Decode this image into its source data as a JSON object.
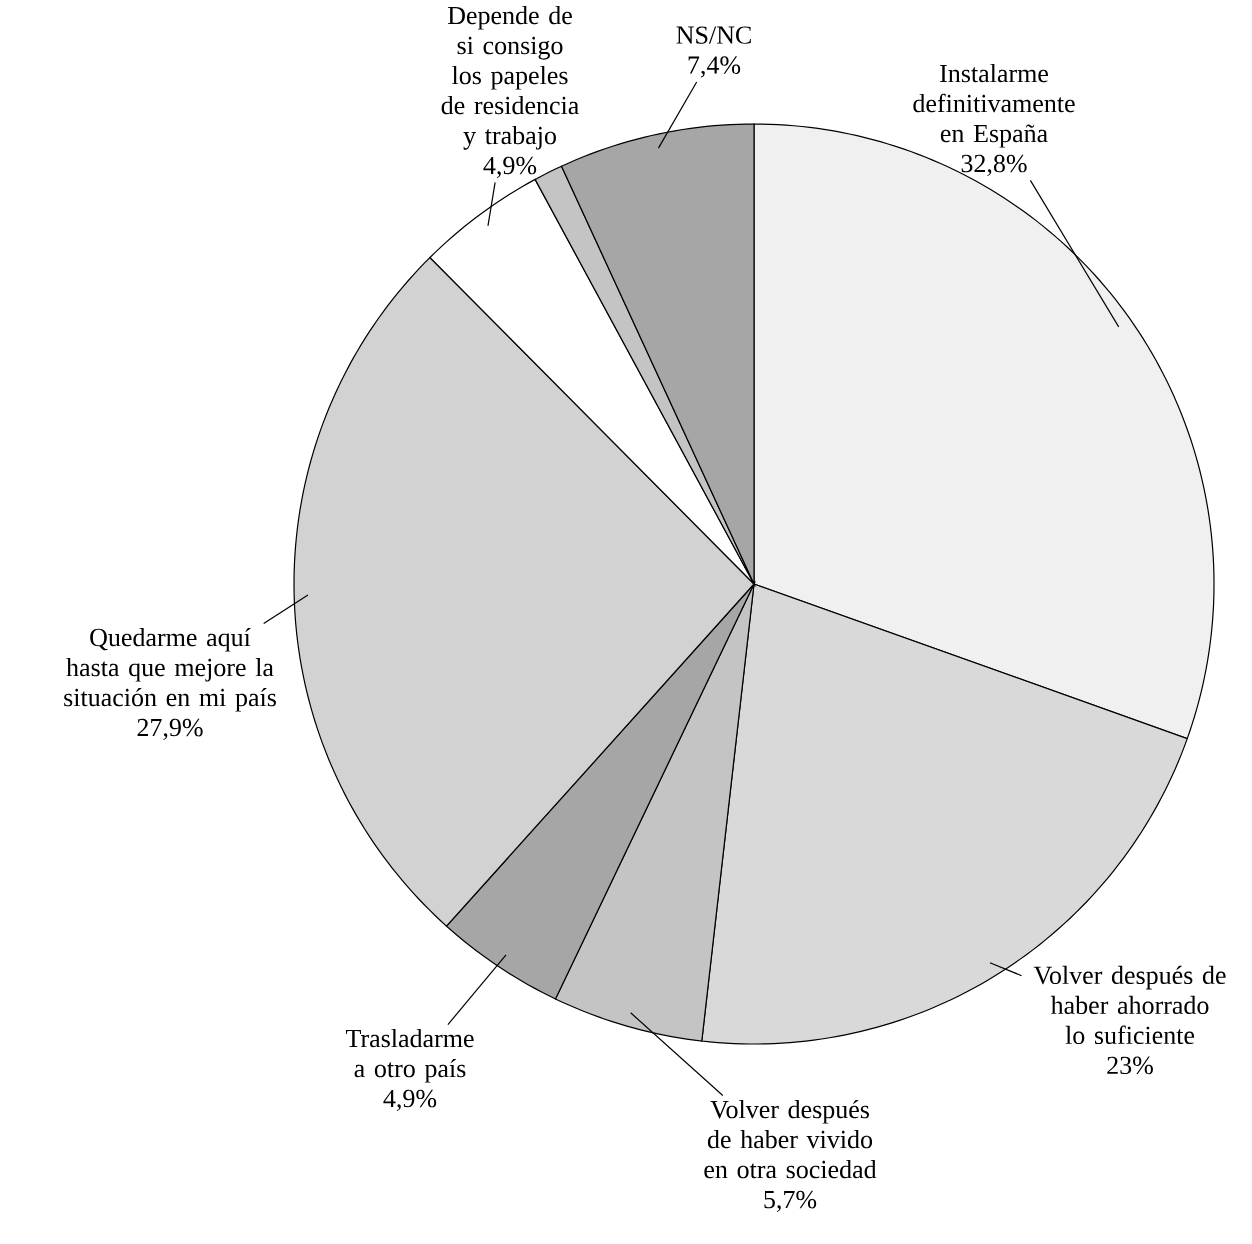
{
  "chart_data": {
    "type": "pie",
    "categories": [
      "Instalarme definitivamente en España",
      "Volver después de haber ahorrado lo suficiente",
      "Volver después de haber vivido en otra sociedad",
      "Trasladarme a otro país",
      "Quedarme aquí hasta que mejore la situación en mi país",
      "Depende de si consigo los papeles de residencia y trabajo",
      null,
      "NS/NC"
    ],
    "values": [
      32.8,
      23,
      5.7,
      4.9,
      27.9,
      4.9,
      1.1,
      7.4
    ],
    "value_labels": [
      "32,8%",
      "23%",
      "5,7%",
      "4,9%",
      "27,9%",
      "4,9%",
      null,
      "7,4%"
    ],
    "colors": [
      "#f0f0f0",
      "#d9d9d9",
      "#c4c4c4",
      "#a6a6a6",
      "#d2d2d2",
      "#ffffff",
      "#c4c4c4",
      "#a6a6a6"
    ]
  }
}
